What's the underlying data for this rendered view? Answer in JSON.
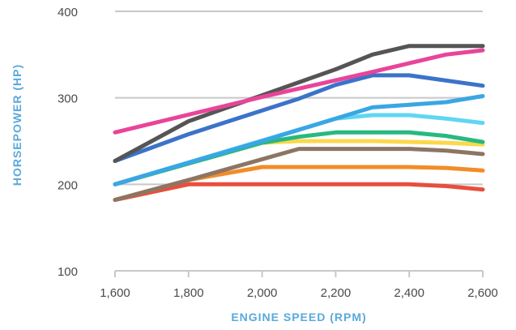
{
  "chart_data": {
    "type": "line",
    "title": "",
    "xlabel": "ENGINE SPEED (RPM)",
    "ylabel": "HORSEPOWER (HP)",
    "xlim": [
      1600,
      2600
    ],
    "ylim": [
      100,
      400
    ],
    "x_ticks": [
      1600,
      1800,
      2000,
      2200,
      2400,
      2600
    ],
    "x_tick_labels": [
      "1,600",
      "1,800",
      "2,000",
      "2,200",
      "2,400",
      "2,600"
    ],
    "y_ticks": [
      100,
      200,
      300,
      400
    ],
    "y_tick_labels": [
      "100",
      "200",
      "300",
      "400"
    ],
    "grid": "horizontal",
    "legend": "none",
    "series": [
      {
        "color": "#e84e3c",
        "x": [
          1600,
          1800,
          2000,
          2200,
          2400,
          2500,
          2600
        ],
        "values": [
          182,
          200,
          200,
          200,
          200,
          198,
          194
        ]
      },
      {
        "color": "#f28c28",
        "x": [
          1600,
          1800,
          2000,
          2200,
          2400,
          2500,
          2600
        ],
        "values": [
          182,
          205,
          220,
          220,
          220,
          219,
          216
        ]
      },
      {
        "color": "#8c7564",
        "x": [
          1600,
          1800,
          2100,
          2400,
          2500,
          2600
        ],
        "values": [
          182,
          205,
          241,
          241,
          239,
          235
        ]
      },
      {
        "color": "#fbd84c",
        "x": [
          1600,
          2000,
          2100,
          2300,
          2500,
          2600
        ],
        "values": [
          200,
          248,
          250,
          250,
          248,
          246
        ]
      },
      {
        "color": "#26b980",
        "x": [
          1600,
          2000,
          2100,
          2200,
          2400,
          2500,
          2600
        ],
        "values": [
          200,
          248,
          255,
          260,
          260,
          256,
          249
        ]
      },
      {
        "color": "#5fd6f4",
        "x": [
          1600,
          2200,
          2300,
          2400,
          2500,
          2600
        ],
        "values": [
          200,
          276,
          280,
          280,
          276,
          271
        ]
      },
      {
        "color": "#3aa6e4",
        "x": [
          1600,
          2000,
          2300,
          2400,
          2500,
          2600
        ],
        "values": [
          200,
          250,
          289,
          292,
          295,
          302
        ]
      },
      {
        "color": "#3b73c9",
        "x": [
          1600,
          1800,
          2100,
          2200,
          2300,
          2400,
          2600
        ],
        "values": [
          227,
          258,
          299,
          315,
          326,
          326,
          314
        ]
      },
      {
        "color": "#555555",
        "x": [
          1600,
          1800,
          2000,
          2200,
          2300,
          2400,
          2600
        ],
        "values": [
          227,
          273,
          303,
          333,
          350,
          360,
          360
        ]
      },
      {
        "color": "#e8459a",
        "x": [
          1600,
          2000,
          2300,
          2500,
          2600
        ],
        "values": [
          260,
          301,
          330,
          350,
          355
        ]
      }
    ]
  }
}
